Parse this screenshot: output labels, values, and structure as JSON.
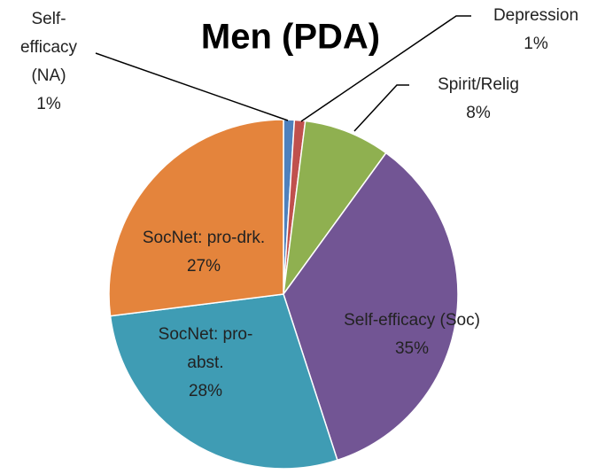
{
  "chart_data": {
    "type": "pie",
    "title": "Men (PDA)",
    "categories": [
      "Self-efficacy (NA)",
      "Depression",
      "Spirit/Relig",
      "Self-efficacy (Soc)",
      "SocNet: pro-abst.",
      "SocNet: pro-drk."
    ],
    "values": [
      1,
      1,
      8,
      35,
      28,
      27
    ],
    "value_labels": [
      "1%",
      "1%",
      "8%",
      "35%",
      "28%",
      "27%"
    ],
    "colors": [
      "#4f81bd",
      "#c0504d",
      "#8fb050",
      "#725594",
      "#3f9cb4",
      "#e4843c"
    ]
  }
}
